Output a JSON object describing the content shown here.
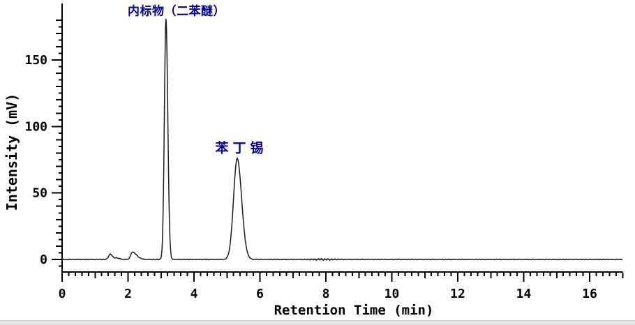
{
  "chart_data": {
    "type": "line",
    "title": "",
    "xlabel": "Retention Time (min)",
    "ylabel": "Intensity (mV)",
    "xlim": [
      0,
      17
    ],
    "ylim": [
      -10,
      192
    ],
    "x_major_ticks": [
      0,
      2,
      4,
      6,
      8,
      10,
      12,
      14,
      16
    ],
    "x_major_tick_labels": [
      "0",
      "2",
      "4",
      "6",
      "8",
      "10",
      "12",
      "14",
      "16"
    ],
    "x_medium_tick_step": 1,
    "x_minor_tick_step": 0.2,
    "x_tick_max": 17,
    "y_major_ticks": [
      0,
      50,
      100,
      150
    ],
    "y_major_tick_labels": [
      "0",
      "50",
      "100",
      "150"
    ],
    "y_medium_tick_step": 10,
    "y_minor_tick_step": 5,
    "y_tick_min": -5,
    "y_tick_max": 180,
    "grid": false,
    "legend": "none",
    "line_color": "#1a1a1a",
    "axis_color": "#000000",
    "annotation_color": "#00008B",
    "background_color": "#ffffff",
    "peaks": [
      {
        "label": "内标物（二苯醚）",
        "retention_time_min": 3.15,
        "apex_mV": 181,
        "sigma_left_min": 0.048,
        "sigma_right_min": 0.055
      },
      {
        "label": "苯丁锡",
        "retention_time_min": 5.31,
        "apex_mV": 76,
        "sigma_left_min": 0.11,
        "sigma_right_min": 0.135
      }
    ],
    "baseline_features": [
      {
        "retention_time_min": 1.46,
        "apex_mV": 4.0,
        "sigma_left_min": 0.05,
        "sigma_right_min": 0.06
      },
      {
        "retention_time_min": 1.63,
        "apex_mV": 1.2,
        "sigma_left_min": 0.06,
        "sigma_right_min": 0.1
      },
      {
        "retention_time_min": 2.13,
        "apex_mV": 5.5,
        "sigma_left_min": 0.05,
        "sigma_right_min": 0.13
      }
    ],
    "baseline_mV": 0,
    "noise_amp_mV": 0.25,
    "noise_region": {
      "retention_time_min": 7.9,
      "extra_amp_mV": 0.55,
      "sigma_min": 0.4
    },
    "sample_step_min": 0.01,
    "annotations": [
      {
        "text": "内标物（二苯醚）",
        "anchor_t_min": 3.47,
        "anchor_mV": 187.5
      },
      {
        "text": "苯丁锡",
        "anchor_t_min": 5.44,
        "anchor_mV": 84.5
      }
    ]
  }
}
